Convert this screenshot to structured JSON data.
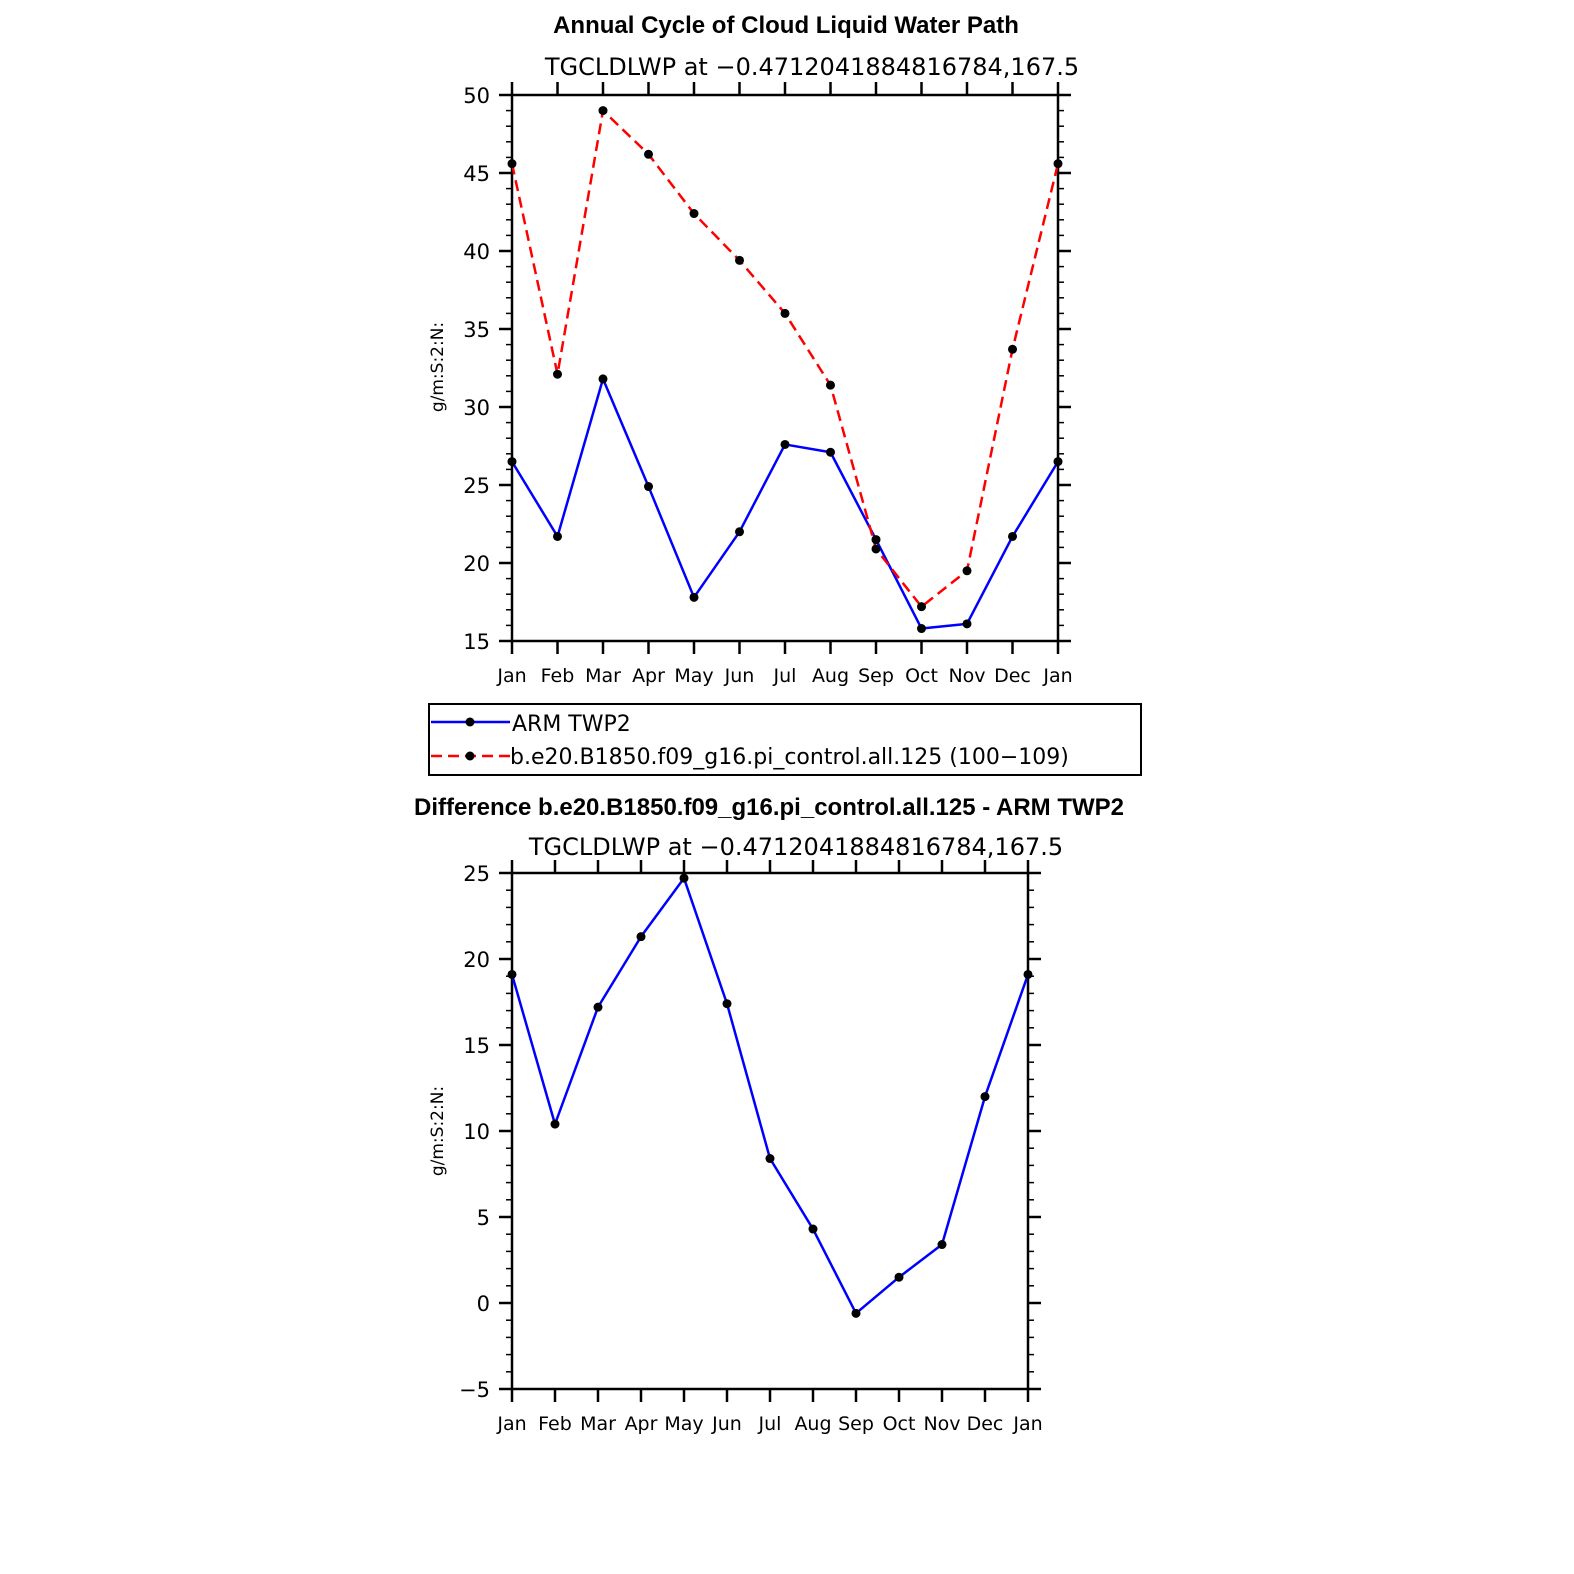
{
  "chart_data": [
    {
      "type": "line",
      "title": "Annual Cycle of Cloud Liquid Water Path",
      "subtitle": "TGCLDLWP at −0.4712041884816784,167.5",
      "ylabel": "g/m:S:2:N:",
      "xlabel": "",
      "categories": [
        "Jan",
        "Feb",
        "Mar",
        "Apr",
        "May",
        "Jun",
        "Jul",
        "Aug",
        "Sep",
        "Oct",
        "Nov",
        "Dec",
        "Jan"
      ],
      "ylim": [
        15,
        50
      ],
      "yticks": [
        15,
        20,
        25,
        30,
        35,
        40,
        45,
        50
      ],
      "ytick_labels": [
        "15",
        "20",
        "25",
        "30",
        "35",
        "40",
        "45",
        "50"
      ],
      "series": [
        {
          "name": "ARM TWP2",
          "color": "#0000ff",
          "dash": "solid",
          "values": [
            26.5,
            21.7,
            31.8,
            24.9,
            17.8,
            22.0,
            27.6,
            27.1,
            21.5,
            15.8,
            16.1,
            21.7,
            26.5
          ]
        },
        {
          "name": "b.e20.B1850.f09_g16.pi_control.all.125 (100−109)",
          "color": "#ff0000",
          "dash": "dashed",
          "values": [
            45.6,
            32.1,
            49.0,
            46.2,
            42.4,
            39.4,
            36.0,
            31.4,
            20.9,
            17.2,
            19.5,
            33.7,
            45.6
          ]
        }
      ],
      "legend": {
        "placement": "below",
        "entries": [
          "ARM TWP2",
          "b.e20.B1850.f09_g16.pi_control.all.125 (100−109)"
        ]
      },
      "grid": false
    },
    {
      "type": "line",
      "title": "Difference b.e20.B1850.f09_g16.pi_control.all.125 - ARM TWP2",
      "subtitle": "TGCLDLWP at −0.4712041884816784,167.5",
      "ylabel": "g/m:S:2:N:",
      "xlabel": "",
      "categories": [
        "Jan",
        "Feb",
        "Mar",
        "Apr",
        "May",
        "Jun",
        "Jul",
        "Aug",
        "Sep",
        "Oct",
        "Nov",
        "Dec",
        "Jan"
      ],
      "ylim": [
        -5,
        25
      ],
      "yticks": [
        -5,
        0,
        5,
        10,
        15,
        20,
        25
      ],
      "ytick_labels": [
        "−5",
        "0",
        "5",
        "10",
        "15",
        "20",
        "25"
      ],
      "series": [
        {
          "color": "#0000ff",
          "dash": "solid",
          "values": [
            19.1,
            10.4,
            17.2,
            21.3,
            24.7,
            17.4,
            8.4,
            4.3,
            -0.6,
            1.5,
            3.4,
            12.0,
            19.1
          ]
        }
      ],
      "grid": false
    }
  ]
}
